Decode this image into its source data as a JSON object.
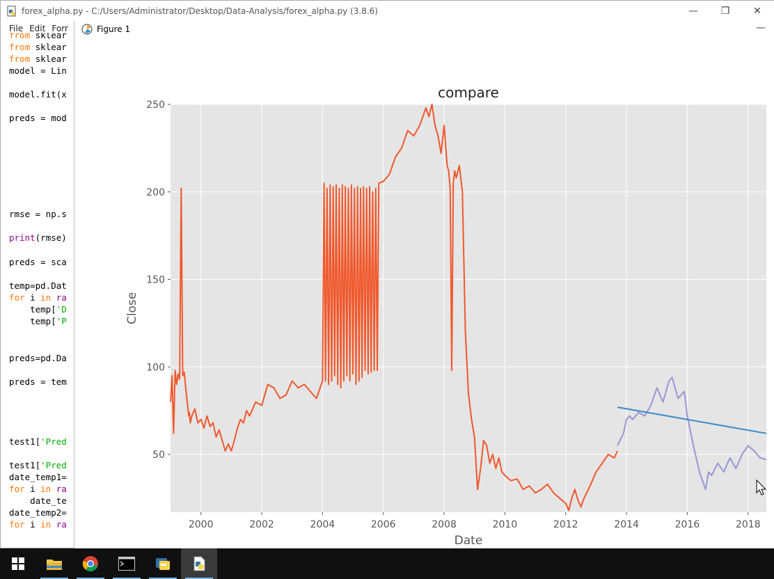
{
  "window": {
    "title": "forex_alpha.py - C:/Users/Administrator/Desktop/Data-Analysis/forex_alpha.py (3.8.6)",
    "controls": {
      "minimize": "—",
      "restore": "❐",
      "close": "✕"
    }
  },
  "menu": [
    "File",
    "Edit",
    "Forr"
  ],
  "code_lines": [
    {
      "y": 4,
      "parts": [
        {
          "t": "from",
          "c": "kw"
        },
        {
          "t": " sklear",
          "c": ""
        }
      ]
    },
    {
      "y": 21,
      "parts": [
        {
          "t": "from",
          "c": "kw"
        },
        {
          "t": " sklear",
          "c": ""
        }
      ]
    },
    {
      "y": 38,
      "parts": [
        {
          "t": "from",
          "c": "kw"
        },
        {
          "t": " sklear",
          "c": ""
        }
      ]
    },
    {
      "y": 55,
      "parts": [
        {
          "t": "model = Lin",
          "c": ""
        }
      ]
    },
    {
      "y": 89,
      "parts": [
        {
          "t": "model.fit(x",
          "c": ""
        }
      ]
    },
    {
      "y": 123,
      "parts": [
        {
          "t": "preds = mod",
          "c": ""
        }
      ]
    },
    {
      "y": 261,
      "parts": [
        {
          "t": "rmse = np.s",
          "c": ""
        }
      ]
    },
    {
      "y": 295,
      "parts": [
        {
          "t": "print",
          "c": "bi"
        },
        {
          "t": "(rmse)",
          "c": ""
        }
      ]
    },
    {
      "y": 330,
      "parts": [
        {
          "t": "preds = sca",
          "c": ""
        }
      ]
    },
    {
      "y": 364,
      "parts": [
        {
          "t": "temp=pd.Dat",
          "c": ""
        }
      ]
    },
    {
      "y": 381,
      "parts": [
        {
          "t": "for",
          "c": "kw"
        },
        {
          "t": " i ",
          "c": ""
        },
        {
          "t": "in",
          "c": "kw"
        },
        {
          "t": " ",
          "c": ""
        },
        {
          "t": "ra",
          "c": "bi"
        }
      ]
    },
    {
      "y": 398,
      "parts": [
        {
          "t": "    temp[",
          "c": ""
        },
        {
          "t": "'D",
          "c": "str"
        }
      ]
    },
    {
      "y": 415,
      "parts": [
        {
          "t": "    temp[",
          "c": ""
        },
        {
          "t": "'P",
          "c": "str"
        }
      ]
    },
    {
      "y": 468,
      "parts": [
        {
          "t": "preds=pd.Da",
          "c": ""
        }
      ]
    },
    {
      "y": 502,
      "parts": [
        {
          "t": "preds = tem",
          "c": ""
        }
      ]
    },
    {
      "y": 588,
      "parts": [
        {
          "t": "test1[",
          "c": ""
        },
        {
          "t": "'Pred",
          "c": "str"
        }
      ]
    },
    {
      "y": 622,
      "parts": [
        {
          "t": "test1[",
          "c": ""
        },
        {
          "t": "'Pred",
          "c": "str"
        }
      ]
    },
    {
      "y": 639,
      "parts": [
        {
          "t": "date_temp1=",
          "c": ""
        }
      ]
    },
    {
      "y": 656,
      "parts": [
        {
          "t": "for",
          "c": "kw"
        },
        {
          "t": " i ",
          "c": ""
        },
        {
          "t": "in",
          "c": "kw"
        },
        {
          "t": " ",
          "c": ""
        },
        {
          "t": "ra",
          "c": "bi"
        }
      ]
    },
    {
      "y": 673,
      "parts": [
        {
          "t": "    date_te",
          "c": ""
        }
      ]
    },
    {
      "y": 690,
      "parts": [
        {
          "t": "date_temp2=",
          "c": ""
        }
      ]
    },
    {
      "y": 707,
      "parts": [
        {
          "t": "for",
          "c": "kw"
        },
        {
          "t": " i ",
          "c": ""
        },
        {
          "t": "in",
          "c": "kw"
        },
        {
          "t": " ",
          "c": ""
        },
        {
          "t": "ra",
          "c": "bi"
        }
      ]
    }
  ],
  "figure": {
    "window_title": "Figure 1",
    "minimize": "—"
  },
  "colors": {
    "train": "#f0582c",
    "valid": "#9b94d6",
    "pred": "#3a8bc9",
    "plot_bg": "#e5e5e5",
    "grid": "#ffffff"
  },
  "chart_data": {
    "type": "line",
    "title": "compare",
    "xlabel": "Date",
    "ylabel": "Close",
    "xlim": [
      1999.0,
      2018.6
    ],
    "ylim": [
      17,
      250
    ],
    "xticks": [
      2000,
      2002,
      2004,
      2006,
      2008,
      2010,
      2012,
      2014,
      2016,
      2018
    ],
    "yticks": [
      50,
      100,
      150,
      200,
      250
    ],
    "grid": true,
    "series": [
      {
        "role": "train",
        "x": [
          1999.0,
          1999.05,
          1999.1,
          1999.15,
          1999.2,
          1999.25,
          1999.3,
          1999.35,
          1999.4,
          1999.45,
          1999.5,
          1999.55,
          1999.6,
          1999.62,
          1999.65,
          1999.7,
          1999.8,
          1999.9,
          2000.0,
          2000.1,
          2000.2,
          2000.3,
          2000.4,
          2000.5,
          2000.6,
          2000.7,
          2000.8,
          2000.9,
          2001.0,
          2001.1,
          2001.2,
          2001.3,
          2001.4,
          2001.5,
          2001.6,
          2001.8,
          2002.0,
          2002.2,
          2002.4,
          2002.6,
          2002.8,
          2003.0,
          2003.2,
          2003.4,
          2003.6,
          2003.8,
          2004.0,
          2004.05,
          2004.1,
          2004.15,
          2004.2,
          2004.25,
          2004.3,
          2004.35,
          2004.4,
          2004.45,
          2004.5,
          2004.55,
          2004.6,
          2004.65,
          2004.7,
          2004.75,
          2004.8,
          2004.85,
          2004.9,
          2004.95,
          2005.0,
          2005.05,
          2005.1,
          2005.15,
          2005.2,
          2005.25,
          2005.3,
          2005.35,
          2005.4,
          2005.45,
          2005.5,
          2005.55,
          2005.6,
          2005.65,
          2005.7,
          2005.75,
          2005.8,
          2005.85,
          2006.0,
          2006.2,
          2006.4,
          2006.6,
          2006.8,
          2007.0,
          2007.2,
          2007.4,
          2007.5,
          2007.6,
          2007.7,
          2007.8,
          2007.9,
          2008.0,
          2008.1,
          2008.15,
          2008.2,
          2008.25,
          2008.3,
          2008.35,
          2008.4,
          2008.5,
          2008.6,
          2008.7,
          2008.8,
          2008.9,
          2009.0,
          2009.1,
          2009.2,
          2009.3,
          2009.4,
          2009.5,
          2009.6,
          2009.7,
          2009.8,
          2009.9,
          2010.0,
          2010.2,
          2010.4,
          2010.6,
          2010.8,
          2011.0,
          2011.2,
          2011.4,
          2011.6,
          2011.8,
          2012.0,
          2012.1,
          2012.2,
          2012.3,
          2012.4,
          2012.5,
          2012.6,
          2012.8,
          2013.0,
          2013.2,
          2013.4,
          2013.6,
          2013.7
        ],
        "y": [
          80,
          95,
          62,
          98,
          90,
          96,
          93,
          202,
          95,
          97,
          88,
          80,
          72,
          74,
          68,
          72,
          76,
          68,
          70,
          65,
          72,
          66,
          68,
          60,
          64,
          58,
          52,
          56,
          52,
          58,
          65,
          70,
          68,
          75,
          72,
          80,
          78,
          90,
          88,
          82,
          84,
          92,
          88,
          90,
          86,
          82,
          92,
          205,
          92,
          202,
          90,
          204,
          92,
          203,
          95,
          204,
          90,
          202,
          88,
          204,
          92,
          203,
          95,
          202,
          92,
          204,
          96,
          202,
          90,
          203,
          92,
          202,
          94,
          203,
          98,
          202,
          96,
          203,
          97,
          200,
          98,
          202,
          98,
          205,
          206,
          210,
          220,
          225,
          235,
          232,
          238,
          248,
          243,
          250,
          238,
          232,
          222,
          238,
          215,
          212,
          202,
          98,
          205,
          212,
          208,
          215,
          200,
          120,
          85,
          70,
          60,
          30,
          42,
          58,
          55,
          45,
          50,
          42,
          48,
          40,
          38,
          35,
          36,
          30,
          32,
          28,
          30,
          33,
          28,
          25,
          22,
          18,
          25,
          30,
          24,
          20,
          25,
          32,
          40,
          45,
          50,
          48,
          52
        ]
      },
      {
        "role": "valid",
        "x": [
          2013.7,
          2013.9,
          2014.0,
          2014.1,
          2014.2,
          2014.4,
          2014.6,
          2014.8,
          2015.0,
          2015.2,
          2015.4,
          2015.5,
          2015.7,
          2015.9,
          2016.0,
          2016.2,
          2016.4,
          2016.5,
          2016.6,
          2016.7,
          2016.8,
          2017.0,
          2017.2,
          2017.4,
          2017.6,
          2017.8,
          2018.0,
          2018.2,
          2018.4,
          2018.6
        ],
        "y": [
          55,
          62,
          70,
          72,
          70,
          74,
          72,
          78,
          88,
          80,
          92,
          94,
          82,
          86,
          72,
          55,
          40,
          35,
          30,
          40,
          38,
          45,
          40,
          48,
          42,
          50,
          55,
          52,
          48,
          47
        ]
      },
      {
        "role": "pred",
        "x": [
          2013.7,
          2018.6
        ],
        "y": [
          77,
          62
        ]
      }
    ]
  },
  "taskbar": {
    "items": [
      "start",
      "explorer",
      "chrome",
      "cmd",
      "python-idle",
      "python-file"
    ]
  }
}
